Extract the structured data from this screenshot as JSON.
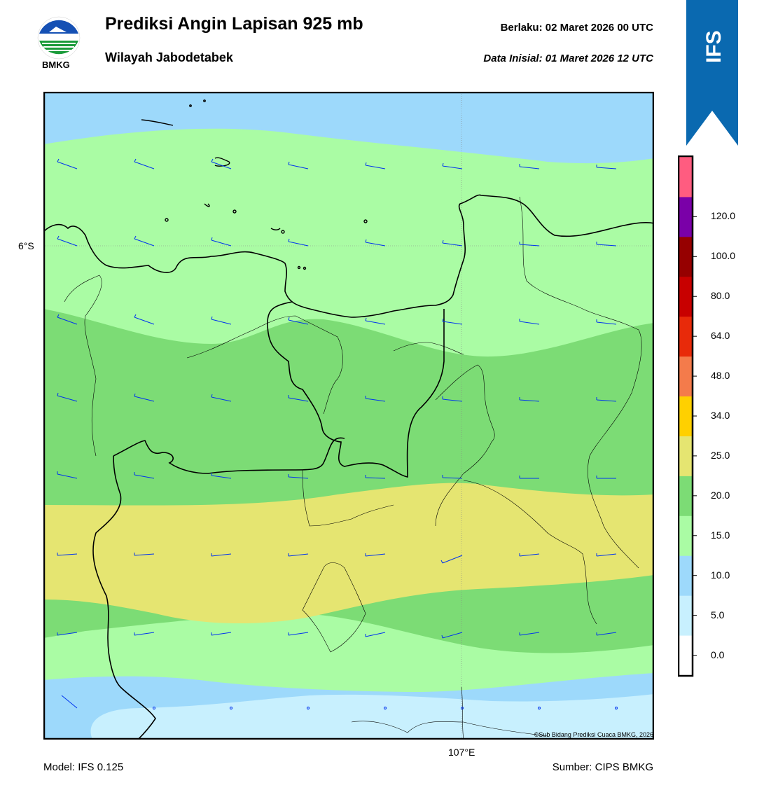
{
  "header": {
    "title": "Prediksi Angin Lapisan 925 mb",
    "subtitle": "Wilayah Jabodetabek",
    "valid": "Berlaku:  02 Maret 2026 00 UTC",
    "initial": "Data Inisial:  01 Maret 2026 12 UTC",
    "logo_text": "BMKG",
    "badge": "IFS"
  },
  "map": {
    "lat_label": "6°S",
    "lon_label": "107°E",
    "credit": "©Sub Bidang Prediksi Cuaca BMKG, 2026",
    "colors": {
      "band_0_5": "#c8f0fe",
      "band_5_10": "#9dd9fb",
      "band_10_15": "#aafca4",
      "band_15_20": "#7cdc75",
      "band_20_25": "#e5e571",
      "barb": "#0033ee",
      "coast": "#000000"
    }
  },
  "colorbar": {
    "ticks": [
      "0.0",
      "5.0",
      "10.0",
      "15.0",
      "20.0",
      "25.0",
      "34.0",
      "48.0",
      "64.0",
      "80.0",
      "100.0",
      "120.0"
    ],
    "colors": [
      "#ffffff",
      "#c8f0fe",
      "#9dd9fb",
      "#aafca4",
      "#7cdc75",
      "#e5e571",
      "#ffd000",
      "#f47b4b",
      "#e82a0a",
      "#c80000",
      "#960000",
      "#7a00a8",
      "#ff5c80"
    ]
  },
  "footer": {
    "model": "Model: IFS 0.125",
    "source": "Sumber: CIPS BMKG"
  }
}
